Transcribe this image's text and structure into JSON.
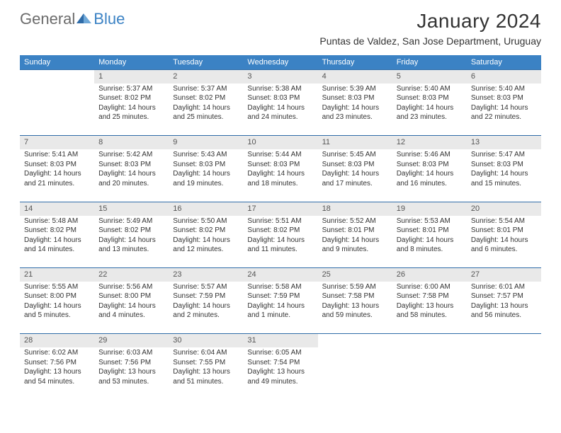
{
  "logo": {
    "general": "General",
    "blue": "Blue"
  },
  "title": "January 2024",
  "location": "Puntas de Valdez, San Jose Department, Uruguay",
  "colors": {
    "header_bg": "#3b82c4",
    "row_divider": "#2f6ca8",
    "daynum_bg": "#e9e9e9",
    "text": "#333333",
    "logo_gray": "#6b6b6b",
    "logo_blue": "#3b82c4"
  },
  "weekdays": [
    "Sunday",
    "Monday",
    "Tuesday",
    "Wednesday",
    "Thursday",
    "Friday",
    "Saturday"
  ],
  "weeks": [
    {
      "nums": [
        "",
        "1",
        "2",
        "3",
        "4",
        "5",
        "6"
      ],
      "cells": [
        {
          "sunrise": "",
          "sunset": "",
          "daylight": ""
        },
        {
          "sunrise": "Sunrise: 5:37 AM",
          "sunset": "Sunset: 8:02 PM",
          "daylight": "Daylight: 14 hours and 25 minutes."
        },
        {
          "sunrise": "Sunrise: 5:37 AM",
          "sunset": "Sunset: 8:02 PM",
          "daylight": "Daylight: 14 hours and 25 minutes."
        },
        {
          "sunrise": "Sunrise: 5:38 AM",
          "sunset": "Sunset: 8:03 PM",
          "daylight": "Daylight: 14 hours and 24 minutes."
        },
        {
          "sunrise": "Sunrise: 5:39 AM",
          "sunset": "Sunset: 8:03 PM",
          "daylight": "Daylight: 14 hours and 23 minutes."
        },
        {
          "sunrise": "Sunrise: 5:40 AM",
          "sunset": "Sunset: 8:03 PM",
          "daylight": "Daylight: 14 hours and 23 minutes."
        },
        {
          "sunrise": "Sunrise: 5:40 AM",
          "sunset": "Sunset: 8:03 PM",
          "daylight": "Daylight: 14 hours and 22 minutes."
        }
      ]
    },
    {
      "nums": [
        "7",
        "8",
        "9",
        "10",
        "11",
        "12",
        "13"
      ],
      "cells": [
        {
          "sunrise": "Sunrise: 5:41 AM",
          "sunset": "Sunset: 8:03 PM",
          "daylight": "Daylight: 14 hours and 21 minutes."
        },
        {
          "sunrise": "Sunrise: 5:42 AM",
          "sunset": "Sunset: 8:03 PM",
          "daylight": "Daylight: 14 hours and 20 minutes."
        },
        {
          "sunrise": "Sunrise: 5:43 AM",
          "sunset": "Sunset: 8:03 PM",
          "daylight": "Daylight: 14 hours and 19 minutes."
        },
        {
          "sunrise": "Sunrise: 5:44 AM",
          "sunset": "Sunset: 8:03 PM",
          "daylight": "Daylight: 14 hours and 18 minutes."
        },
        {
          "sunrise": "Sunrise: 5:45 AM",
          "sunset": "Sunset: 8:03 PM",
          "daylight": "Daylight: 14 hours and 17 minutes."
        },
        {
          "sunrise": "Sunrise: 5:46 AM",
          "sunset": "Sunset: 8:03 PM",
          "daylight": "Daylight: 14 hours and 16 minutes."
        },
        {
          "sunrise": "Sunrise: 5:47 AM",
          "sunset": "Sunset: 8:03 PM",
          "daylight": "Daylight: 14 hours and 15 minutes."
        }
      ]
    },
    {
      "nums": [
        "14",
        "15",
        "16",
        "17",
        "18",
        "19",
        "20"
      ],
      "cells": [
        {
          "sunrise": "Sunrise: 5:48 AM",
          "sunset": "Sunset: 8:02 PM",
          "daylight": "Daylight: 14 hours and 14 minutes."
        },
        {
          "sunrise": "Sunrise: 5:49 AM",
          "sunset": "Sunset: 8:02 PM",
          "daylight": "Daylight: 14 hours and 13 minutes."
        },
        {
          "sunrise": "Sunrise: 5:50 AM",
          "sunset": "Sunset: 8:02 PM",
          "daylight": "Daylight: 14 hours and 12 minutes."
        },
        {
          "sunrise": "Sunrise: 5:51 AM",
          "sunset": "Sunset: 8:02 PM",
          "daylight": "Daylight: 14 hours and 11 minutes."
        },
        {
          "sunrise": "Sunrise: 5:52 AM",
          "sunset": "Sunset: 8:01 PM",
          "daylight": "Daylight: 14 hours and 9 minutes."
        },
        {
          "sunrise": "Sunrise: 5:53 AM",
          "sunset": "Sunset: 8:01 PM",
          "daylight": "Daylight: 14 hours and 8 minutes."
        },
        {
          "sunrise": "Sunrise: 5:54 AM",
          "sunset": "Sunset: 8:01 PM",
          "daylight": "Daylight: 14 hours and 6 minutes."
        }
      ]
    },
    {
      "nums": [
        "21",
        "22",
        "23",
        "24",
        "25",
        "26",
        "27"
      ],
      "cells": [
        {
          "sunrise": "Sunrise: 5:55 AM",
          "sunset": "Sunset: 8:00 PM",
          "daylight": "Daylight: 14 hours and 5 minutes."
        },
        {
          "sunrise": "Sunrise: 5:56 AM",
          "sunset": "Sunset: 8:00 PM",
          "daylight": "Daylight: 14 hours and 4 minutes."
        },
        {
          "sunrise": "Sunrise: 5:57 AM",
          "sunset": "Sunset: 7:59 PM",
          "daylight": "Daylight: 14 hours and 2 minutes."
        },
        {
          "sunrise": "Sunrise: 5:58 AM",
          "sunset": "Sunset: 7:59 PM",
          "daylight": "Daylight: 14 hours and 1 minute."
        },
        {
          "sunrise": "Sunrise: 5:59 AM",
          "sunset": "Sunset: 7:58 PM",
          "daylight": "Daylight: 13 hours and 59 minutes."
        },
        {
          "sunrise": "Sunrise: 6:00 AM",
          "sunset": "Sunset: 7:58 PM",
          "daylight": "Daylight: 13 hours and 58 minutes."
        },
        {
          "sunrise": "Sunrise: 6:01 AM",
          "sunset": "Sunset: 7:57 PM",
          "daylight": "Daylight: 13 hours and 56 minutes."
        }
      ]
    },
    {
      "nums": [
        "28",
        "29",
        "30",
        "31",
        "",
        "",
        ""
      ],
      "cells": [
        {
          "sunrise": "Sunrise: 6:02 AM",
          "sunset": "Sunset: 7:56 PM",
          "daylight": "Daylight: 13 hours and 54 minutes."
        },
        {
          "sunrise": "Sunrise: 6:03 AM",
          "sunset": "Sunset: 7:56 PM",
          "daylight": "Daylight: 13 hours and 53 minutes."
        },
        {
          "sunrise": "Sunrise: 6:04 AM",
          "sunset": "Sunset: 7:55 PM",
          "daylight": "Daylight: 13 hours and 51 minutes."
        },
        {
          "sunrise": "Sunrise: 6:05 AM",
          "sunset": "Sunset: 7:54 PM",
          "daylight": "Daylight: 13 hours and 49 minutes."
        },
        {
          "sunrise": "",
          "sunset": "",
          "daylight": ""
        },
        {
          "sunrise": "",
          "sunset": "",
          "daylight": ""
        },
        {
          "sunrise": "",
          "sunset": "",
          "daylight": ""
        }
      ]
    }
  ]
}
